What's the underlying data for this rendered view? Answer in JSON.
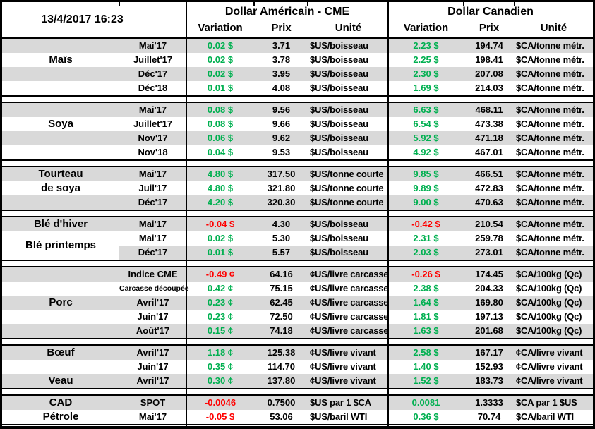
{
  "report": {
    "datetime": "13/4/2017 16:23"
  },
  "header": {
    "us_group": "Dollar Américain - CME",
    "ca_group": "Dollar Canadien",
    "columns": {
      "variation": "Variation",
      "price": "Prix",
      "unit": "Unité"
    }
  },
  "colors": {
    "positive": "#00B050",
    "negative": "#FF0000",
    "row_stripe": "#D9D9D9",
    "border": "#000000"
  },
  "sections": [
    {
      "id": "mais",
      "rows": [
        {
          "label": "",
          "month": "Mai'17",
          "us_var": "0.02 $",
          "us_price": "3.71",
          "us_unit": "$US/boisseau",
          "ca_var": "2.23 $",
          "ca_price": "194.74",
          "ca_unit": "$CA/tonne métr."
        },
        {
          "label": "Maïs",
          "month": "Juillet'17",
          "us_var": "0.02 $",
          "us_price": "3.78",
          "us_unit": "$US/boisseau",
          "ca_var": "2.25 $",
          "ca_price": "198.41",
          "ca_unit": "$CA/tonne métr."
        },
        {
          "label": "",
          "month": "Déc'17",
          "us_var": "0.02 $",
          "us_price": "3.95",
          "us_unit": "$US/boisseau",
          "ca_var": "2.30 $",
          "ca_price": "207.08",
          "ca_unit": "$CA/tonne métr."
        },
        {
          "label": "",
          "month": "Déc'18",
          "us_var": "0.01 $",
          "us_price": "4.08",
          "us_unit": "$US/boisseau",
          "ca_var": "1.69 $",
          "ca_price": "214.03",
          "ca_unit": "$CA/tonne métr."
        }
      ]
    },
    {
      "id": "soya",
      "rows": [
        {
          "label": "",
          "month": "Mai'17",
          "us_var": "0.08 $",
          "us_price": "9.56",
          "us_unit": "$US/boisseau",
          "ca_var": "6.63 $",
          "ca_price": "468.11",
          "ca_unit": "$CA/tonne métr."
        },
        {
          "label": "Soya",
          "month": "Juillet'17",
          "us_var": "0.08 $",
          "us_price": "9.66",
          "us_unit": "$US/boisseau",
          "ca_var": "6.54 $",
          "ca_price": "473.38",
          "ca_unit": "$CA/tonne métr."
        },
        {
          "label": "",
          "month": "Nov'17",
          "us_var": "0.06 $",
          "us_price": "9.62",
          "us_unit": "$US/boisseau",
          "ca_var": "5.92 $",
          "ca_price": "471.18",
          "ca_unit": "$CA/tonne métr."
        },
        {
          "label": "",
          "month": "Nov'18",
          "us_var": "0.04 $",
          "us_price": "9.53",
          "us_unit": "$US/boisseau",
          "ca_var": "4.92 $",
          "ca_price": "467.01",
          "ca_unit": "$CA/tonne métr."
        }
      ]
    },
    {
      "id": "tourteau-de-soya",
      "rows": [
        {
          "label": "Tourteau",
          "month": "Mai'17",
          "us_var": "4.80 $",
          "us_price": "317.50",
          "us_unit": "$US/tonne courte",
          "ca_var": "9.85 $",
          "ca_price": "466.51",
          "ca_unit": "$CA/tonne métr."
        },
        {
          "label": "de soya",
          "month": "Juil'17",
          "us_var": "4.80 $",
          "us_price": "321.80",
          "us_unit": "$US/tonne courte",
          "ca_var": "9.89 $",
          "ca_price": "472.83",
          "ca_unit": "$CA/tonne métr."
        },
        {
          "label": "",
          "month": "Déc'17",
          "us_var": "4.20 $",
          "us_price": "320.30",
          "us_unit": "$US/tonne courte",
          "ca_var": "9.00 $",
          "ca_price": "470.63",
          "ca_unit": "$CA/tonne métr."
        }
      ]
    },
    {
      "id": "ble",
      "rows": [
        {
          "label": "Blé d'hiver",
          "month": "Mai'17",
          "us_var": "-0.04 $",
          "us_price": "4.30",
          "us_unit": "$US/boisseau",
          "ca_var": "-0.42 $",
          "ca_price": "210.54",
          "ca_unit": "$CA/tonne métr."
        },
        {
          "label": "Blé printemps",
          "label_straddle": true,
          "month": "Mai'17",
          "us_var": "0.02 $",
          "us_price": "5.30",
          "us_unit": "$US/boisseau",
          "ca_var": "2.31 $",
          "ca_price": "259.78",
          "ca_unit": "$CA/tonne métr."
        },
        {
          "label": "",
          "partial": true,
          "month": "Déc'17",
          "us_var": "0.01 $",
          "us_price": "5.57",
          "us_unit": "$US/boisseau",
          "ca_var": "2.03 $",
          "ca_price": "273.01",
          "ca_unit": "$CA/tonne métr."
        }
      ]
    },
    {
      "id": "porc",
      "rows": [
        {
          "label": "",
          "month": "Indice CME",
          "us_var": "-0.49 ¢",
          "us_price": "64.16",
          "us_unit": "¢US/livre carcasse",
          "ca_var": "-0.26 $",
          "ca_price": "174.45",
          "ca_unit": "$CA/100kg (Qc)"
        },
        {
          "label": "",
          "month": "Carcasse découpée",
          "month_small": true,
          "us_var": "0.42 ¢",
          "us_price": "75.15",
          "us_unit": "¢US/livre carcasse",
          "ca_var": "2.38 $",
          "ca_price": "204.33",
          "ca_unit": "$CA/100kg (Qc)"
        },
        {
          "label": "Porc",
          "month": "Avril'17",
          "us_var": "0.23 ¢",
          "us_price": "62.45",
          "us_unit": "¢US/livre carcasse",
          "ca_var": "1.64 $",
          "ca_price": "169.80",
          "ca_unit": "$CA/100kg (Qc)"
        },
        {
          "label": "",
          "month": "Juin'17",
          "us_var": "0.23 ¢",
          "us_price": "72.50",
          "us_unit": "¢US/livre carcasse",
          "ca_var": "1.81 $",
          "ca_price": "197.13",
          "ca_unit": "$CA/100kg (Qc)"
        },
        {
          "label": "",
          "month": "Août'17",
          "us_var": "0.15 ¢",
          "us_price": "74.18",
          "us_unit": "¢US/livre carcasse",
          "ca_var": "1.63 $",
          "ca_price": "201.68",
          "ca_unit": "$CA/100kg (Qc)"
        }
      ]
    },
    {
      "id": "boeuf-veau",
      "rows": [
        {
          "label": "Bœuf",
          "month": "Avril'17",
          "us_var": "1.18 ¢",
          "us_price": "125.38",
          "us_unit": "¢US/livre vivant",
          "ca_var": "2.58 $",
          "ca_price": "167.17",
          "ca_unit": "¢CA/livre vivant"
        },
        {
          "label": "",
          "month": "Juin'17",
          "us_var": "0.35 ¢",
          "us_price": "114.70",
          "us_unit": "¢US/livre vivant",
          "ca_var": "1.40 $",
          "ca_price": "152.93",
          "ca_unit": "¢CA/livre vivant"
        },
        {
          "label": "Veau",
          "month": "Avril'17",
          "us_var": "0.30 ¢",
          "us_price": "137.80",
          "us_unit": "¢US/livre vivant",
          "ca_var": "1.52 $",
          "ca_price": "183.73",
          "ca_unit": "¢CA/livre vivant"
        }
      ]
    },
    {
      "id": "cad-petrole",
      "rows": [
        {
          "label": "CAD",
          "month": "SPOT",
          "us_var": "-0.0046",
          "us_price": "0.7500",
          "us_unit": "$US par 1 $CA",
          "ca_var": "0.0081",
          "ca_price": "1.3333",
          "ca_unit": "$CA par 1 $US"
        },
        {
          "label": "Pétrole",
          "month": "Mai'17",
          "us_var": "-0.05 $",
          "us_price": "53.06",
          "us_unit": "$US/baril WTI",
          "ca_var": "0.36 $",
          "ca_price": "70.74",
          "ca_unit": "$CA/baril WTI"
        }
      ]
    }
  ]
}
